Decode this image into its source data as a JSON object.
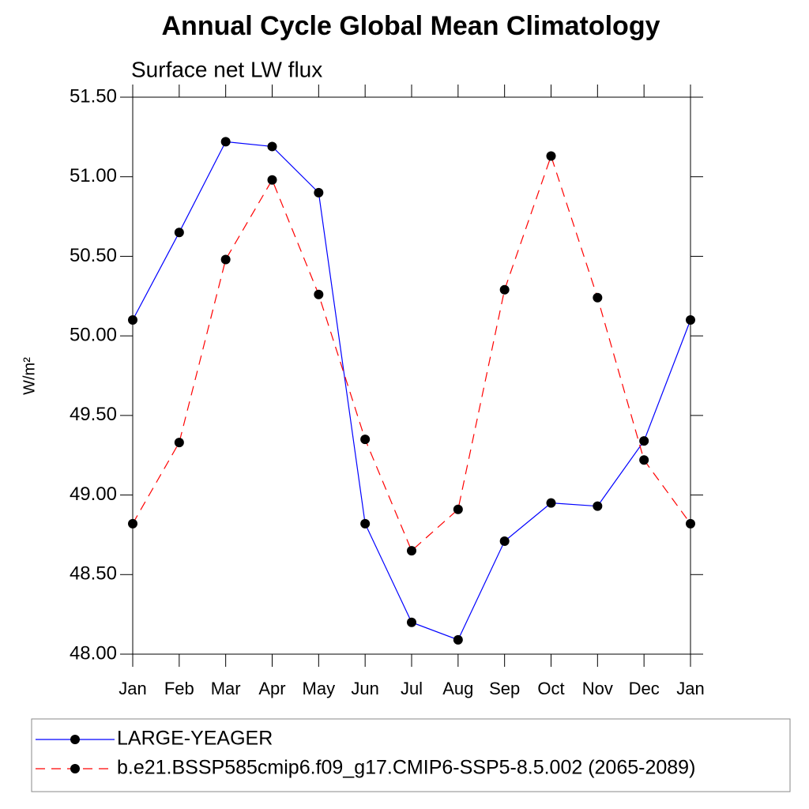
{
  "chart_data": {
    "type": "line",
    "title": "Annual Cycle Global Mean Climatology",
    "subtitle": "Surface net LW flux",
    "y_label": "W/m²",
    "categories": [
      "Jan",
      "Feb",
      "Mar",
      "Apr",
      "May",
      "Jun",
      "Jul",
      "Aug",
      "Sep",
      "Oct",
      "Nov",
      "Dec",
      "Jan"
    ],
    "series": [
      {
        "name": "LARGE-YEAGER",
        "color": "#0000ff",
        "dash": "solid",
        "values": [
          50.1,
          50.65,
          51.22,
          51.19,
          50.9,
          48.82,
          48.2,
          48.09,
          48.71,
          48.95,
          48.93,
          49.34,
          50.1
        ]
      },
      {
        "name": "b.e21.BSSP585cmip6.f09_g17.CMIP6-SSP5-8.5.002 (2065-2089)",
        "color": "#ff0000",
        "dash": "dashed",
        "values": [
          48.82,
          49.33,
          50.48,
          50.98,
          50.26,
          49.35,
          48.65,
          48.91,
          50.29,
          51.13,
          50.24,
          49.22,
          48.82
        ]
      }
    ],
    "ylim": [
      48.0,
      51.5
    ],
    "yticks": [
      {
        "value": 48.0,
        "label": "48.00"
      },
      {
        "value": 48.5,
        "label": "48.50"
      },
      {
        "value": 49.0,
        "label": "49.00"
      },
      {
        "value": 49.5,
        "label": "49.50"
      },
      {
        "value": 50.0,
        "label": "50.00"
      },
      {
        "value": 50.5,
        "label": "50.50"
      },
      {
        "value": 51.0,
        "label": "51.00"
      },
      {
        "value": 51.5,
        "label": "51.50"
      }
    ],
    "grid": false,
    "legend": "bottom"
  }
}
